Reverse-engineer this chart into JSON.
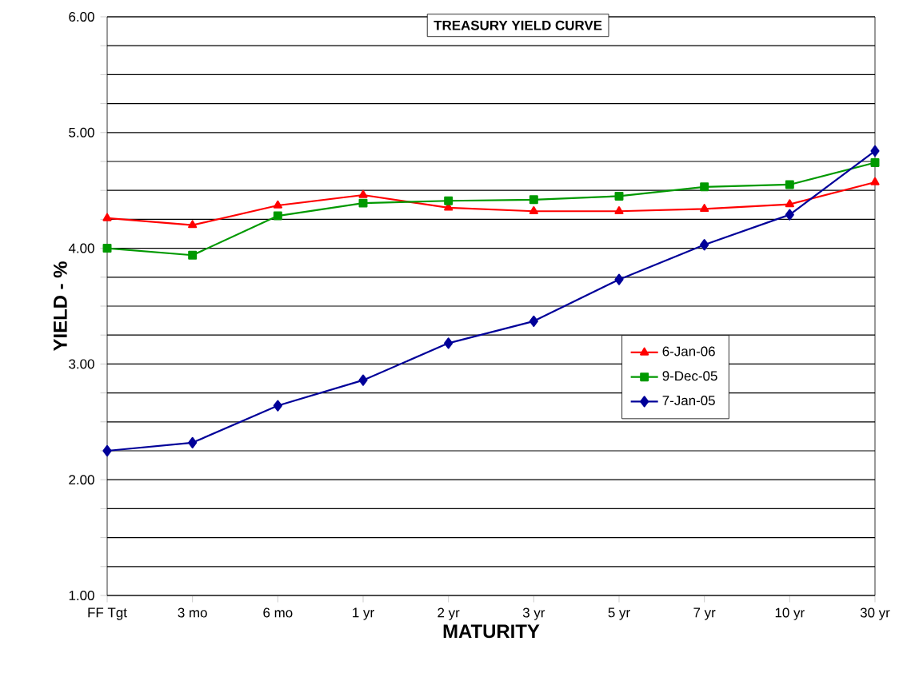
{
  "chart_data": {
    "type": "line",
    "title": "TREASURY YIELD CURVE",
    "xlabel": "MATURITY",
    "ylabel": "YIELD - %",
    "categories": [
      "FF Tgt",
      "3 mo",
      "6 mo",
      "1 yr",
      "2 yr",
      "3 yr",
      "5 yr",
      "7 yr",
      "10 yr",
      "30 yr"
    ],
    "series": [
      {
        "name": "6-Jan-06",
        "color": "#ff0000",
        "marker": "triangle",
        "values": [
          4.26,
          4.2,
          4.37,
          4.46,
          4.35,
          4.32,
          4.32,
          4.34,
          4.38,
          4.57
        ]
      },
      {
        "name": "9-Dec-05",
        "color": "#009900",
        "marker": "square",
        "values": [
          4.0,
          3.94,
          4.28,
          4.39,
          4.41,
          4.42,
          4.45,
          4.53,
          4.55,
          4.74
        ]
      },
      {
        "name": "7-Jan-05",
        "color": "#000099",
        "marker": "diamond",
        "values": [
          2.25,
          2.32,
          2.64,
          2.86,
          3.18,
          3.37,
          3.73,
          4.03,
          4.29,
          4.84
        ]
      }
    ],
    "ylim": [
      1,
      6
    ],
    "yticks": [
      {
        "value": 1,
        "label": "1.00"
      },
      {
        "value": 1.25,
        "label": null
      },
      {
        "value": 1.5,
        "label": null
      },
      {
        "value": 1.75,
        "label": null
      },
      {
        "value": 2,
        "label": "2.00"
      },
      {
        "value": 2.25,
        "label": null
      },
      {
        "value": 2.5,
        "label": null
      },
      {
        "value": 2.75,
        "label": null
      },
      {
        "value": 3,
        "label": "3.00"
      },
      {
        "value": 3.25,
        "label": null
      },
      {
        "value": 3.5,
        "label": null
      },
      {
        "value": 3.75,
        "label": null
      },
      {
        "value": 4,
        "label": "4.00"
      },
      {
        "value": 4.25,
        "label": null
      },
      {
        "value": 4.5,
        "label": null
      },
      {
        "value": 4.75,
        "label": null
      },
      {
        "value": 5,
        "label": "5.00"
      },
      {
        "value": 5.25,
        "label": null
      },
      {
        "value": 5.5,
        "label": null
      },
      {
        "value": 5.75,
        "label": null
      },
      {
        "value": 6,
        "label": "6.00"
      }
    ],
    "grid": "y",
    "legend": "right"
  }
}
